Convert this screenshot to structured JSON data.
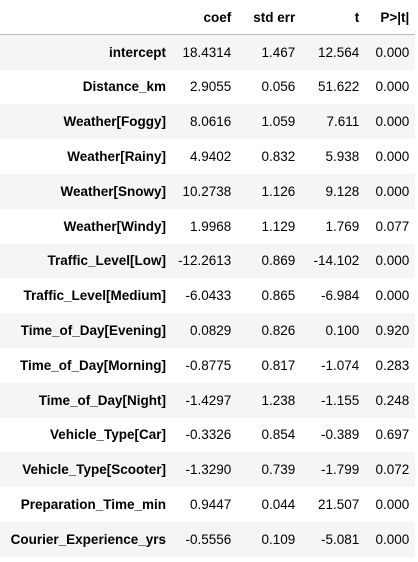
{
  "table": {
    "columns": [
      "",
      "coef",
      "std err",
      "t",
      "P>|t|"
    ],
    "rows": [
      {
        "label": "intercept",
        "coef": "18.4314",
        "std_err": "1.467",
        "t": "12.564",
        "p": "0.000"
      },
      {
        "label": "Distance_km",
        "coef": "2.9055",
        "std_err": "0.056",
        "t": "51.622",
        "p": "0.000"
      },
      {
        "label": "Weather[Foggy]",
        "coef": "8.0616",
        "std_err": "1.059",
        "t": "7.611",
        "p": "0.000"
      },
      {
        "label": "Weather[Rainy]",
        "coef": "4.9402",
        "std_err": "0.832",
        "t": "5.938",
        "p": "0.000"
      },
      {
        "label": "Weather[Snowy]",
        "coef": "10.2738",
        "std_err": "1.126",
        "t": "9.128",
        "p": "0.000"
      },
      {
        "label": "Weather[Windy]",
        "coef": "1.9968",
        "std_err": "1.129",
        "t": "1.769",
        "p": "0.077"
      },
      {
        "label": "Traffic_Level[Low]",
        "coef": "-12.2613",
        "std_err": "0.869",
        "t": "-14.102",
        "p": "0.000"
      },
      {
        "label": "Traffic_Level[Medium]",
        "coef": "-6.0433",
        "std_err": "0.865",
        "t": "-6.984",
        "p": "0.000"
      },
      {
        "label": "Time_of_Day[Evening]",
        "coef": "0.0829",
        "std_err": "0.826",
        "t": "0.100",
        "p": "0.920"
      },
      {
        "label": "Time_of_Day[Morning]",
        "coef": "-0.8775",
        "std_err": "0.817",
        "t": "-1.074",
        "p": "0.283"
      },
      {
        "label": "Time_of_Day[Night]",
        "coef": "-1.4297",
        "std_err": "1.238",
        "t": "-1.155",
        "p": "0.248"
      },
      {
        "label": "Vehicle_Type[Car]",
        "coef": "-0.3326",
        "std_err": "0.854",
        "t": "-0.389",
        "p": "0.697"
      },
      {
        "label": "Vehicle_Type[Scooter]",
        "coef": "-1.3290",
        "std_err": "0.739",
        "t": "-1.799",
        "p": "0.072"
      },
      {
        "label": "Preparation_Time_min",
        "coef": "0.9447",
        "std_err": "0.044",
        "t": "21.507",
        "p": "0.000"
      },
      {
        "label": "Courier_Experience_yrs",
        "coef": "-0.5556",
        "std_err": "0.109",
        "t": "-5.081",
        "p": "0.000"
      }
    ]
  }
}
